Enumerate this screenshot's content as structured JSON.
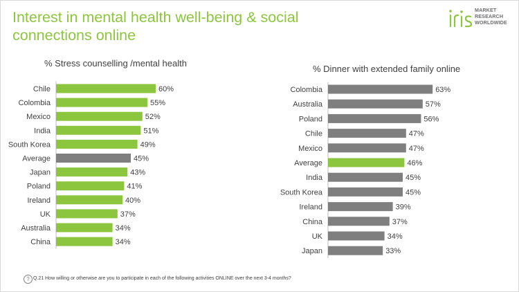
{
  "page_title": "Interest in mental health well-being & social connections online",
  "logo": {
    "mark": "iris",
    "line1": "MARKET",
    "line2": "RESEARCH",
    "line3": "WORLDWIDE"
  },
  "footnote": "Q.21 How willing or otherwise are you to participate  in each of the following  activities ONLINE over the next 3-4 months?",
  "colors": {
    "green": "#8cc63e",
    "grey": "#7f7f7f",
    "text": "#404040"
  },
  "chart_data": [
    {
      "type": "bar",
      "orientation": "horizontal",
      "title": "% Stress counselling /mental health",
      "categories": [
        "Chile",
        "Colombia",
        "Mexico",
        "India",
        "South Korea",
        "Average",
        "Japan",
        "Poland",
        "Ireland",
        "UK",
        "Australia",
        "China"
      ],
      "values": [
        60,
        55,
        52,
        51,
        49,
        45,
        43,
        41,
        40,
        37,
        34,
        34
      ],
      "value_suffix": "%",
      "highlight": "Average",
      "bar_color": "#8cc63e",
      "highlight_color": "#7f7f7f"
    },
    {
      "type": "bar",
      "orientation": "horizontal",
      "title": "% Dinner with extended family online",
      "categories": [
        "Colombia",
        "Australia",
        "Poland",
        "Chile",
        "Mexico",
        "Average",
        "India",
        "South Korea",
        "Ireland",
        "China",
        "UK",
        "Japan"
      ],
      "values": [
        63,
        57,
        56,
        47,
        47,
        46,
        45,
        45,
        39,
        37,
        34,
        33
      ],
      "value_suffix": "%",
      "highlight": "Average",
      "bar_color": "#7f7f7f",
      "highlight_color": "#8cc63e"
    }
  ]
}
